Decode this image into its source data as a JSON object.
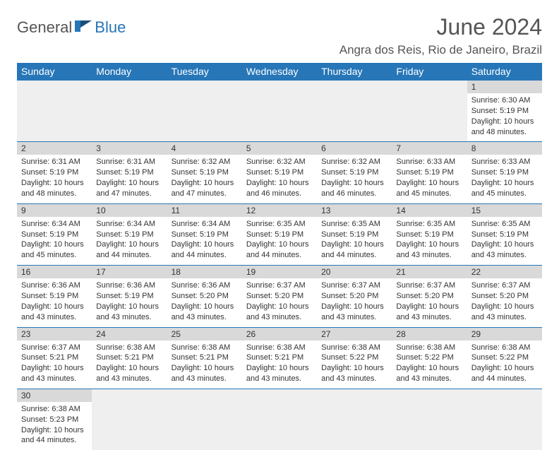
{
  "brand": {
    "part1": "General",
    "part2": "Blue"
  },
  "title": "June 2024",
  "location": "Angra dos Reis, Rio de Janeiro, Brazil",
  "colors": {
    "header_bg": "#2676b8",
    "header_text": "#ffffff",
    "daynum_bg": "#d9d9d9",
    "empty_bg": "#efefef",
    "border": "#2676b8",
    "text": "#333333",
    "title_text": "#555555"
  },
  "day_headers": [
    "Sunday",
    "Monday",
    "Tuesday",
    "Wednesday",
    "Thursday",
    "Friday",
    "Saturday"
  ],
  "first_weekday_index": 6,
  "weeks": [
    [
      null,
      null,
      null,
      null,
      null,
      null,
      {
        "n": "1",
        "sunrise": "Sunrise: 6:30 AM",
        "sunset": "Sunset: 5:19 PM",
        "dl1": "Daylight: 10 hours",
        "dl2": "and 48 minutes."
      }
    ],
    [
      {
        "n": "2",
        "sunrise": "Sunrise: 6:31 AM",
        "sunset": "Sunset: 5:19 PM",
        "dl1": "Daylight: 10 hours",
        "dl2": "and 48 minutes."
      },
      {
        "n": "3",
        "sunrise": "Sunrise: 6:31 AM",
        "sunset": "Sunset: 5:19 PM",
        "dl1": "Daylight: 10 hours",
        "dl2": "and 47 minutes."
      },
      {
        "n": "4",
        "sunrise": "Sunrise: 6:32 AM",
        "sunset": "Sunset: 5:19 PM",
        "dl1": "Daylight: 10 hours",
        "dl2": "and 47 minutes."
      },
      {
        "n": "5",
        "sunrise": "Sunrise: 6:32 AM",
        "sunset": "Sunset: 5:19 PM",
        "dl1": "Daylight: 10 hours",
        "dl2": "and 46 minutes."
      },
      {
        "n": "6",
        "sunrise": "Sunrise: 6:32 AM",
        "sunset": "Sunset: 5:19 PM",
        "dl1": "Daylight: 10 hours",
        "dl2": "and 46 minutes."
      },
      {
        "n": "7",
        "sunrise": "Sunrise: 6:33 AM",
        "sunset": "Sunset: 5:19 PM",
        "dl1": "Daylight: 10 hours",
        "dl2": "and 45 minutes."
      },
      {
        "n": "8",
        "sunrise": "Sunrise: 6:33 AM",
        "sunset": "Sunset: 5:19 PM",
        "dl1": "Daylight: 10 hours",
        "dl2": "and 45 minutes."
      }
    ],
    [
      {
        "n": "9",
        "sunrise": "Sunrise: 6:34 AM",
        "sunset": "Sunset: 5:19 PM",
        "dl1": "Daylight: 10 hours",
        "dl2": "and 45 minutes."
      },
      {
        "n": "10",
        "sunrise": "Sunrise: 6:34 AM",
        "sunset": "Sunset: 5:19 PM",
        "dl1": "Daylight: 10 hours",
        "dl2": "and 44 minutes."
      },
      {
        "n": "11",
        "sunrise": "Sunrise: 6:34 AM",
        "sunset": "Sunset: 5:19 PM",
        "dl1": "Daylight: 10 hours",
        "dl2": "and 44 minutes."
      },
      {
        "n": "12",
        "sunrise": "Sunrise: 6:35 AM",
        "sunset": "Sunset: 5:19 PM",
        "dl1": "Daylight: 10 hours",
        "dl2": "and 44 minutes."
      },
      {
        "n": "13",
        "sunrise": "Sunrise: 6:35 AM",
        "sunset": "Sunset: 5:19 PM",
        "dl1": "Daylight: 10 hours",
        "dl2": "and 44 minutes."
      },
      {
        "n": "14",
        "sunrise": "Sunrise: 6:35 AM",
        "sunset": "Sunset: 5:19 PM",
        "dl1": "Daylight: 10 hours",
        "dl2": "and 43 minutes."
      },
      {
        "n": "15",
        "sunrise": "Sunrise: 6:35 AM",
        "sunset": "Sunset: 5:19 PM",
        "dl1": "Daylight: 10 hours",
        "dl2": "and 43 minutes."
      }
    ],
    [
      {
        "n": "16",
        "sunrise": "Sunrise: 6:36 AM",
        "sunset": "Sunset: 5:19 PM",
        "dl1": "Daylight: 10 hours",
        "dl2": "and 43 minutes."
      },
      {
        "n": "17",
        "sunrise": "Sunrise: 6:36 AM",
        "sunset": "Sunset: 5:19 PM",
        "dl1": "Daylight: 10 hours",
        "dl2": "and 43 minutes."
      },
      {
        "n": "18",
        "sunrise": "Sunrise: 6:36 AM",
        "sunset": "Sunset: 5:20 PM",
        "dl1": "Daylight: 10 hours",
        "dl2": "and 43 minutes."
      },
      {
        "n": "19",
        "sunrise": "Sunrise: 6:37 AM",
        "sunset": "Sunset: 5:20 PM",
        "dl1": "Daylight: 10 hours",
        "dl2": "and 43 minutes."
      },
      {
        "n": "20",
        "sunrise": "Sunrise: 6:37 AM",
        "sunset": "Sunset: 5:20 PM",
        "dl1": "Daylight: 10 hours",
        "dl2": "and 43 minutes."
      },
      {
        "n": "21",
        "sunrise": "Sunrise: 6:37 AM",
        "sunset": "Sunset: 5:20 PM",
        "dl1": "Daylight: 10 hours",
        "dl2": "and 43 minutes."
      },
      {
        "n": "22",
        "sunrise": "Sunrise: 6:37 AM",
        "sunset": "Sunset: 5:20 PM",
        "dl1": "Daylight: 10 hours",
        "dl2": "and 43 minutes."
      }
    ],
    [
      {
        "n": "23",
        "sunrise": "Sunrise: 6:37 AM",
        "sunset": "Sunset: 5:21 PM",
        "dl1": "Daylight: 10 hours",
        "dl2": "and 43 minutes."
      },
      {
        "n": "24",
        "sunrise": "Sunrise: 6:38 AM",
        "sunset": "Sunset: 5:21 PM",
        "dl1": "Daylight: 10 hours",
        "dl2": "and 43 minutes."
      },
      {
        "n": "25",
        "sunrise": "Sunrise: 6:38 AM",
        "sunset": "Sunset: 5:21 PM",
        "dl1": "Daylight: 10 hours",
        "dl2": "and 43 minutes."
      },
      {
        "n": "26",
        "sunrise": "Sunrise: 6:38 AM",
        "sunset": "Sunset: 5:21 PM",
        "dl1": "Daylight: 10 hours",
        "dl2": "and 43 minutes."
      },
      {
        "n": "27",
        "sunrise": "Sunrise: 6:38 AM",
        "sunset": "Sunset: 5:22 PM",
        "dl1": "Daylight: 10 hours",
        "dl2": "and 43 minutes."
      },
      {
        "n": "28",
        "sunrise": "Sunrise: 6:38 AM",
        "sunset": "Sunset: 5:22 PM",
        "dl1": "Daylight: 10 hours",
        "dl2": "and 43 minutes."
      },
      {
        "n": "29",
        "sunrise": "Sunrise: 6:38 AM",
        "sunset": "Sunset: 5:22 PM",
        "dl1": "Daylight: 10 hours",
        "dl2": "and 44 minutes."
      }
    ],
    [
      {
        "n": "30",
        "sunrise": "Sunrise: 6:38 AM",
        "sunset": "Sunset: 5:23 PM",
        "dl1": "Daylight: 10 hours",
        "dl2": "and 44 minutes."
      },
      null,
      null,
      null,
      null,
      null,
      null
    ]
  ]
}
